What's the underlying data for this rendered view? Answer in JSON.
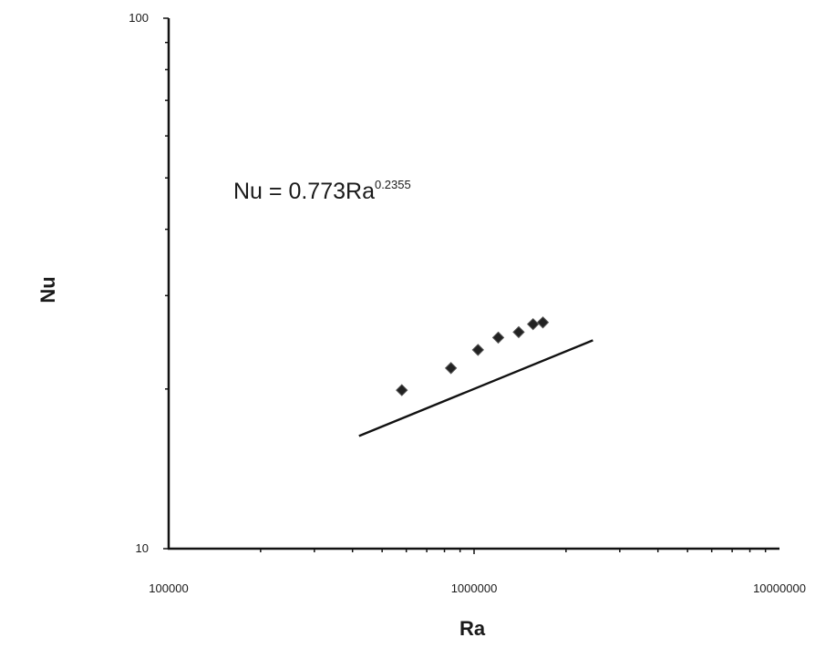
{
  "chart_data": {
    "type": "scatter",
    "x_scale": "log",
    "y_scale": "log",
    "xlim": [
      100000,
      10000000
    ],
    "ylim": [
      10,
      100
    ],
    "xlabel": "Ra",
    "ylabel": "Nu",
    "x_tick_labels": [
      "100000",
      "1000000",
      "10000000"
    ],
    "y_tick_labels": [
      "10",
      "100"
    ],
    "grid": false,
    "legend": "none",
    "annotation": {
      "base": "Nu = 0.773Ra",
      "exponent": "0.2355"
    },
    "series": [
      {
        "marker": "diamond",
        "points": [
          {
            "x": 580000,
            "y": 19.9
          },
          {
            "x": 840000,
            "y": 21.9
          },
          {
            "x": 1030000,
            "y": 23.7
          },
          {
            "x": 1200000,
            "y": 25.0
          },
          {
            "x": 1400000,
            "y": 25.6
          },
          {
            "x": 1560000,
            "y": 26.5
          },
          {
            "x": 1680000,
            "y": 26.7
          }
        ]
      }
    ],
    "trendline": {
      "coefficient": 0.773,
      "exponent": 0.2355,
      "x_range": [
        420000,
        2450000
      ]
    }
  }
}
